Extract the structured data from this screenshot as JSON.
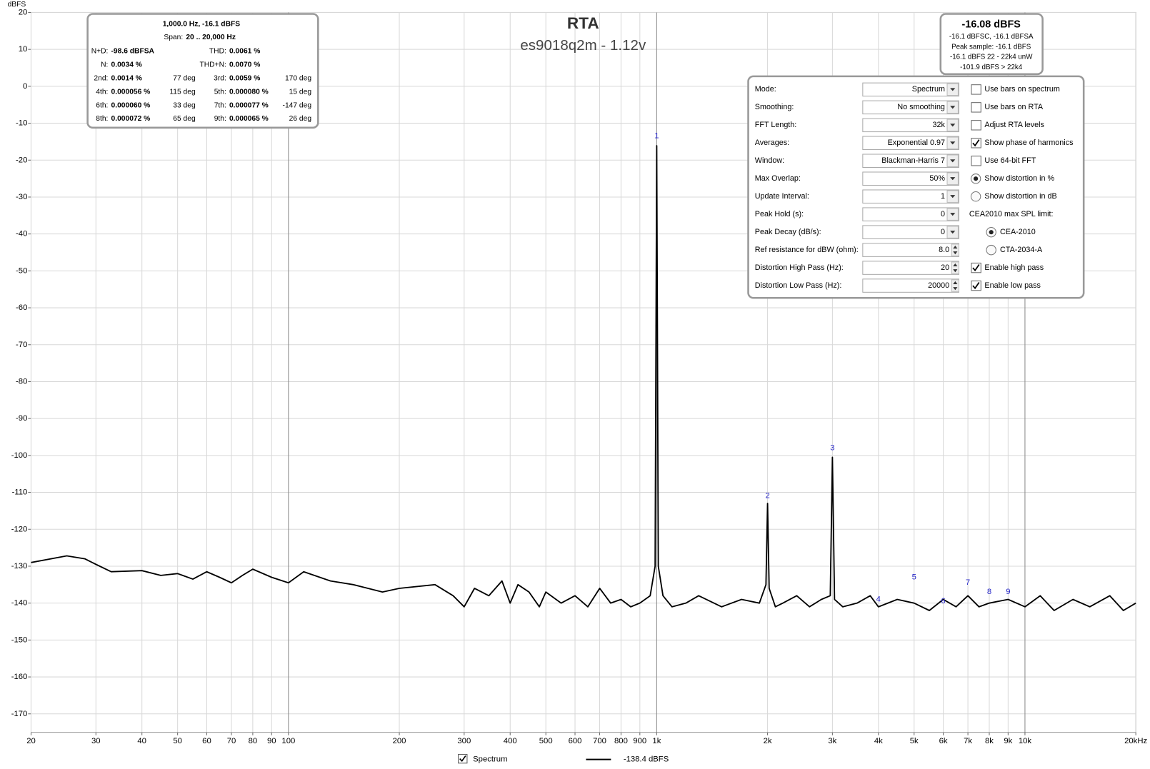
{
  "chart_data": {
    "type": "line",
    "title": "RTA",
    "subtitle": "es9018q2m - 1.12v",
    "y_axis_label": "dBFS",
    "log_x": true,
    "grid": true,
    "xlim": [
      20,
      20000
    ],
    "ylim": [
      -175,
      20
    ],
    "xticks": [
      20,
      30,
      40,
      50,
      60,
      70,
      80,
      90,
      100,
      200,
      300,
      400,
      500,
      600,
      700,
      800,
      900,
      {
        "value": 1000,
        "label": "1k"
      },
      {
        "value": 2000,
        "label": "2k"
      },
      {
        "value": 3000,
        "label": "3k"
      },
      {
        "value": 4000,
        "label": "4k"
      },
      {
        "value": 5000,
        "label": "5k"
      },
      {
        "value": 6000,
        "label": "6k"
      },
      {
        "value": 7000,
        "label": "7k"
      },
      {
        "value": 8000,
        "label": "8k"
      },
      {
        "value": 9000,
        "label": "9k"
      },
      {
        "value": 10000,
        "label": "10k"
      },
      {
        "value": 20000,
        "label": "20kHz"
      }
    ],
    "yticks": [
      20,
      10,
      0,
      -10,
      -20,
      -30,
      -40,
      -50,
      -60,
      -70,
      -80,
      -90,
      -100,
      -110,
      -120,
      -130,
      -140,
      -150,
      -160,
      -170
    ],
    "series": [
      {
        "name": "Spectrum",
        "color": "#000000",
        "visible": true,
        "legend_value": "-138.4 dBFS",
        "x": [
          20,
          25,
          28,
          30,
          33,
          40,
          45,
          50,
          55,
          60,
          65,
          70,
          75,
          80,
          90,
          100,
          110,
          130,
          150,
          180,
          200,
          250,
          280,
          300,
          320,
          350,
          380,
          400,
          420,
          450,
          480,
          500,
          550,
          600,
          650,
          700,
          750,
          800,
          850,
          900,
          960,
          990,
          1000,
          1010,
          1040,
          1100,
          1200,
          1300,
          1500,
          1700,
          1900,
          1980,
          2000,
          2020,
          2100,
          2200,
          2400,
          2600,
          2800,
          2960,
          3000,
          3040,
          3200,
          3500,
          3800,
          4000,
          4500,
          5000,
          5500,
          6000,
          6500,
          7000,
          7500,
          8000,
          9000,
          10000,
          11000,
          12000,
          13500,
          15000,
          17000,
          18500,
          20000
        ],
        "values": [
          -129,
          -127.2,
          -128,
          -129.5,
          -131.5,
          -131.2,
          -132.5,
          -132,
          -133.5,
          -131.5,
          -133,
          -134.5,
          -132.5,
          -130.8,
          -133,
          -134.5,
          -131.5,
          -134,
          -135,
          -137,
          -136,
          -135,
          -138,
          -141,
          -136,
          -138,
          -134,
          -140,
          -135,
          -137,
          -141,
          -137,
          -140,
          -138,
          -141,
          -136,
          -140,
          -139,
          -141,
          -140,
          -138,
          -130,
          -16.1,
          -130,
          -138,
          -141,
          -140,
          -138,
          -141,
          -139,
          -140,
          -135,
          -113,
          -136,
          -141,
          -140,
          -138,
          -141,
          -139,
          -138,
          -100.5,
          -139,
          -141,
          -140,
          -138,
          -141,
          -139,
          -140,
          -142,
          -139,
          -141,
          -138,
          -141,
          -140,
          -139,
          -141,
          -138,
          -142,
          -139,
          -141,
          -138,
          -142,
          -140
        ]
      }
    ],
    "harmonic_markers": [
      {
        "label": "1",
        "x": 1000,
        "y": -13.5
      },
      {
        "label": "2",
        "x": 2000,
        "y": -111
      },
      {
        "label": "3",
        "x": 3000,
        "y": -98
      },
      {
        "label": "4",
        "x": 4000,
        "y": -139
      },
      {
        "label": "5",
        "x": 5000,
        "y": -133
      },
      {
        "label": "6",
        "x": 6000,
        "y": -139.5
      },
      {
        "label": "7",
        "x": 7000,
        "y": -134.5
      },
      {
        "label": "8",
        "x": 8000,
        "y": -137
      },
      {
        "label": "9",
        "x": 9000,
        "y": -137
      }
    ]
  },
  "distortion_panel": {
    "header": "1,000.0 Hz, -16.1 dBFS",
    "span_label": "Span:",
    "span": "20 .. 20,000 Hz",
    "rows": [
      [
        "N+D:",
        "-98.6 dBFSA",
        null,
        "THD:",
        "0.0061 %",
        null
      ],
      [
        "N:",
        "0.0034 %",
        null,
        "THD+N:",
        "0.0070 %",
        null
      ],
      [
        "2nd:",
        "0.0014 %",
        "77 deg",
        "3rd:",
        "0.0059 %",
        "170 deg"
      ],
      [
        "4th:",
        "0.000056 %",
        "115 deg",
        "5th:",
        "0.000080 %",
        "15 deg"
      ],
      [
        "6th:",
        "0.000060 %",
        "33 deg",
        "7th:",
        "0.000077 %",
        "-147 deg"
      ],
      [
        "8th:",
        "0.000072 %",
        "65 deg",
        "9th:",
        "0.000065 %",
        "26 deg"
      ]
    ]
  },
  "level_panel": {
    "title": "-16.08 dBFS",
    "lines": [
      "-16.1 dBFSC, -16.1 dBFSA",
      "Peak sample: -16.1 dBFS",
      "-16.1 dBFS 22 - 22k4 unW",
      "-101.9 dBFS > 22k4"
    ]
  },
  "settings_panel": {
    "fields": [
      {
        "label": "Mode:",
        "value": "Spectrum",
        "control": "dropdown"
      },
      {
        "label": "Smoothing:",
        "value": "No  smoothing",
        "control": "dropdown"
      },
      {
        "label": "FFT Length:",
        "value": "32k",
        "control": "dropdown"
      },
      {
        "label": "Averages:",
        "value": "Exponential 0.97",
        "control": "dropdown"
      },
      {
        "label": "Window:",
        "value": "Blackman-Harris 7",
        "control": "dropdown"
      },
      {
        "label": "Max Overlap:",
        "value": "50%",
        "control": "dropdown"
      },
      {
        "label": "Update Interval:",
        "value": "1",
        "control": "dropdown"
      },
      {
        "label": "Peak Hold (s):",
        "value": "0",
        "control": "dropdown"
      },
      {
        "label": "Peak Decay (dB/s):",
        "value": "0",
        "control": "dropdown"
      },
      {
        "label": "Ref resistance for dBW (ohm):",
        "value": "8.0",
        "control": "spinner"
      },
      {
        "label": "Distortion High Pass (Hz):",
        "value": "20",
        "control": "spinner"
      },
      {
        "label": "Distortion Low Pass (Hz):",
        "value": "20000",
        "control": "spinner"
      }
    ],
    "options": [
      {
        "label": "Use bars on spectrum",
        "kind": "checkbox",
        "checked": false
      },
      {
        "label": "Use bars on RTA",
        "kind": "checkbox",
        "checked": false
      },
      {
        "label": "Adjust RTA levels",
        "kind": "checkbox",
        "checked": false
      },
      {
        "label": "Show phase of harmonics",
        "kind": "checkbox",
        "checked": true
      },
      {
        "label": "Use 64-bit FFT",
        "kind": "checkbox",
        "checked": false
      },
      {
        "label": "Show distortion in %",
        "kind": "radio",
        "checked": true
      },
      {
        "label": "Show distortion in dB",
        "kind": "radio",
        "checked": false
      },
      {
        "label": "CEA2010 max SPL limit:",
        "kind": "text"
      },
      {
        "label": "CEA-2010",
        "kind": "radio",
        "checked": true
      },
      {
        "label": "CTA-2034-A",
        "kind": "radio",
        "checked": false
      },
      {
        "label": "Enable high pass",
        "kind": "checkbox",
        "checked": true
      },
      {
        "label": "Enable low pass",
        "kind": "checkbox",
        "checked": true
      }
    ]
  }
}
